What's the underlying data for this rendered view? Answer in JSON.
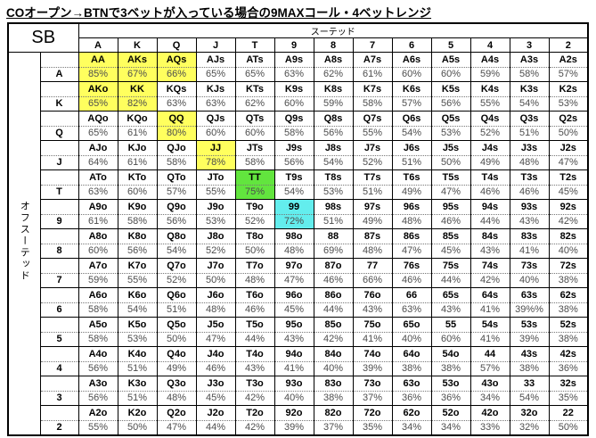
{
  "title": "COオープン→BTNで3ベットが入っている場合の9MAXコール・4ベットレンジ",
  "chart_data": {
    "type": "table",
    "title": "COオープン→BTNで3ベットが入っている場合の9MAXコール・4ベットレンジ",
    "corner_label": "SB",
    "suited_label": "スーテッド",
    "offsuit_label": "オフスーテッド",
    "columns": [
      "A",
      "K",
      "Q",
      "J",
      "T",
      "9",
      "8",
      "7",
      "6",
      "5",
      "4",
      "3",
      "2"
    ],
    "highlights": {
      "yellow": "#ffff5e",
      "green": "#62e53e",
      "cyan": "#63eded"
    },
    "rows": [
      {
        "label": "A",
        "cells": [
          [
            "AA",
            "85%",
            "yellow"
          ],
          [
            "AKs",
            "67%",
            "yellow"
          ],
          [
            "AQs",
            "66%",
            "yellow"
          ],
          [
            "AJs",
            "65%"
          ],
          [
            "ATs",
            "65%"
          ],
          [
            "A9s",
            "63%"
          ],
          [
            "A8s",
            "62%"
          ],
          [
            "A7s",
            "61%"
          ],
          [
            "A6s",
            "60%"
          ],
          [
            "A5s",
            "60%"
          ],
          [
            "A4s",
            "59%"
          ],
          [
            "A3s",
            "58%"
          ],
          [
            "A2s",
            "57%"
          ]
        ]
      },
      {
        "label": "K",
        "cells": [
          [
            "AKo",
            "65%",
            "yellow"
          ],
          [
            "KK",
            "82%",
            "yellow"
          ],
          [
            "KQs",
            "63%"
          ],
          [
            "KJs",
            "63%"
          ],
          [
            "KTs",
            "62%"
          ],
          [
            "K9s",
            "60%"
          ],
          [
            "K8s",
            "59%"
          ],
          [
            "K7s",
            "58%"
          ],
          [
            "K6s",
            "57%"
          ],
          [
            "K5s",
            "56%"
          ],
          [
            "K4s",
            "55%"
          ],
          [
            "K3s",
            "54%"
          ],
          [
            "K2s",
            "53%"
          ]
        ]
      },
      {
        "label": "Q",
        "cells": [
          [
            "AQo",
            "65%"
          ],
          [
            "KQo",
            "61%"
          ],
          [
            "QQ",
            "80%",
            "yellow"
          ],
          [
            "QJs",
            "60%"
          ],
          [
            "QTs",
            "60%"
          ],
          [
            "Q9s",
            "58%"
          ],
          [
            "Q8s",
            "56%"
          ],
          [
            "Q7s",
            "55%"
          ],
          [
            "Q6s",
            "54%"
          ],
          [
            "Q5s",
            "53%"
          ],
          [
            "Q4s",
            "52%"
          ],
          [
            "Q3s",
            "51%"
          ],
          [
            "Q2s",
            "50%"
          ]
        ]
      },
      {
        "label": "J",
        "cells": [
          [
            "AJo",
            "64%"
          ],
          [
            "KJo",
            "61%"
          ],
          [
            "QJo",
            "58%"
          ],
          [
            "JJ",
            "78%",
            "yellow"
          ],
          [
            "JTs",
            "58%"
          ],
          [
            "J9s",
            "56%"
          ],
          [
            "J8s",
            "54%"
          ],
          [
            "J7s",
            "52%"
          ],
          [
            "J6s",
            "51%"
          ],
          [
            "J5s",
            "50%"
          ],
          [
            "J4s",
            "49%"
          ],
          [
            "J3s",
            "48%"
          ],
          [
            "J2s",
            "47%"
          ]
        ]
      },
      {
        "label": "T",
        "cells": [
          [
            "ATo",
            "63%"
          ],
          [
            "KTo",
            "60%"
          ],
          [
            "QTo",
            "57%"
          ],
          [
            "JTo",
            "55%"
          ],
          [
            "TT",
            "75%",
            "green"
          ],
          [
            "T9s",
            "54%"
          ],
          [
            "T8s",
            "53%"
          ],
          [
            "T7s",
            "51%"
          ],
          [
            "T6s",
            "49%"
          ],
          [
            "T5s",
            "47%"
          ],
          [
            "T4s",
            "46%"
          ],
          [
            "T3s",
            "46%"
          ],
          [
            "T2s",
            "45%"
          ]
        ]
      },
      {
        "label": "9",
        "cells": [
          [
            "A9o",
            "61%"
          ],
          [
            "K9o",
            "58%"
          ],
          [
            "Q9o",
            "56%"
          ],
          [
            "J9o",
            "53%"
          ],
          [
            "T9o",
            "52%"
          ],
          [
            "99",
            "72%",
            "cyan"
          ],
          [
            "98s",
            "51%"
          ],
          [
            "97s",
            "49%"
          ],
          [
            "96s",
            "48%"
          ],
          [
            "95s",
            "46%"
          ],
          [
            "94s",
            "44%"
          ],
          [
            "93s",
            "43%"
          ],
          [
            "92s",
            "42%"
          ]
        ]
      },
      {
        "label": "8",
        "cells": [
          [
            "A8o",
            "60%"
          ],
          [
            "K8o",
            "56%"
          ],
          [
            "Q8o",
            "54%"
          ],
          [
            "J8o",
            "52%"
          ],
          [
            "T8o",
            "50%"
          ],
          [
            "98o",
            "48%"
          ],
          [
            "88",
            "69%"
          ],
          [
            "87s",
            "48%"
          ],
          [
            "86s",
            "47%"
          ],
          [
            "85s",
            "45%"
          ],
          [
            "84s",
            "43%"
          ],
          [
            "83s",
            "41%"
          ],
          [
            "82s",
            "40%"
          ]
        ]
      },
      {
        "label": "7",
        "cells": [
          [
            "A7o",
            "59%"
          ],
          [
            "K7o",
            "55%"
          ],
          [
            "Q7o",
            "52%"
          ],
          [
            "J7o",
            "50%"
          ],
          [
            "T7o",
            "48%"
          ],
          [
            "97o",
            "47%"
          ],
          [
            "87o",
            "46%"
          ],
          [
            "77",
            "66%"
          ],
          [
            "76s",
            "46%"
          ],
          [
            "75s",
            "44%"
          ],
          [
            "74s",
            "42%"
          ],
          [
            "73s",
            "40%"
          ],
          [
            "72s",
            "38%"
          ]
        ]
      },
      {
        "label": "6",
        "cells": [
          [
            "A6o",
            "58%"
          ],
          [
            "K6o",
            "54%"
          ],
          [
            "Q6o",
            "51%"
          ],
          [
            "J6o",
            "48%"
          ],
          [
            "T6o",
            "46%"
          ],
          [
            "96o",
            "45%"
          ],
          [
            "86o",
            "44%"
          ],
          [
            "76o",
            "43%"
          ],
          [
            "66",
            "63%"
          ],
          [
            "65s",
            "43%"
          ],
          [
            "64s",
            "41%"
          ],
          [
            "63s",
            "39%%"
          ],
          [
            "62s",
            "38%"
          ]
        ]
      },
      {
        "label": "5",
        "cells": [
          [
            "A5o",
            "58%"
          ],
          [
            "K5o",
            "53%"
          ],
          [
            "Q5o",
            "50%"
          ],
          [
            "J5o",
            "47%"
          ],
          [
            "T5o",
            "44%"
          ],
          [
            "95o",
            "43%"
          ],
          [
            "85o",
            "42%"
          ],
          [
            "75o",
            "41%"
          ],
          [
            "65o",
            "40%"
          ],
          [
            "55",
            "60%"
          ],
          [
            "54s",
            "41%"
          ],
          [
            "53s",
            "39%"
          ],
          [
            "52s",
            "38%"
          ]
        ]
      },
      {
        "label": "4",
        "cells": [
          [
            "A4o",
            "56%"
          ],
          [
            "K4o",
            "51%"
          ],
          [
            "Q4o",
            "49%"
          ],
          [
            "J4o",
            "46%"
          ],
          [
            "T4o",
            "43%"
          ],
          [
            "94o",
            "41%"
          ],
          [
            "84o",
            "40%"
          ],
          [
            "74o",
            "39%"
          ],
          [
            "64o",
            "38%"
          ],
          [
            "54o",
            "38%"
          ],
          [
            "44",
            "57%"
          ],
          [
            "43s",
            "38%"
          ],
          [
            "42s",
            "36%"
          ]
        ]
      },
      {
        "label": "3",
        "cells": [
          [
            "A3o",
            "56%"
          ],
          [
            "K3o",
            "51%"
          ],
          [
            "Q3o",
            "48%"
          ],
          [
            "J3o",
            "45%"
          ],
          [
            "T3o",
            "42%"
          ],
          [
            "93o",
            "40%"
          ],
          [
            "83o",
            "38%"
          ],
          [
            "73o",
            "37%"
          ],
          [
            "63o",
            "36%"
          ],
          [
            "53o",
            "36%"
          ],
          [
            "43o",
            "34%"
          ],
          [
            "33",
            "54%"
          ],
          [
            "32s",
            "35%"
          ]
        ]
      },
      {
        "label": "2",
        "cells": [
          [
            "A2o",
            "55%"
          ],
          [
            "K2o",
            "50%"
          ],
          [
            "Q2o",
            "47%"
          ],
          [
            "J2o",
            "44%"
          ],
          [
            "T2o",
            "42%"
          ],
          [
            "92o",
            "39%"
          ],
          [
            "82o",
            "37%"
          ],
          [
            "72o",
            "35%"
          ],
          [
            "62o",
            "34%"
          ],
          [
            "52o",
            "34%"
          ],
          [
            "42o",
            "33%"
          ],
          [
            "32o",
            "32%"
          ],
          [
            "22",
            "50%"
          ]
        ]
      }
    ]
  }
}
